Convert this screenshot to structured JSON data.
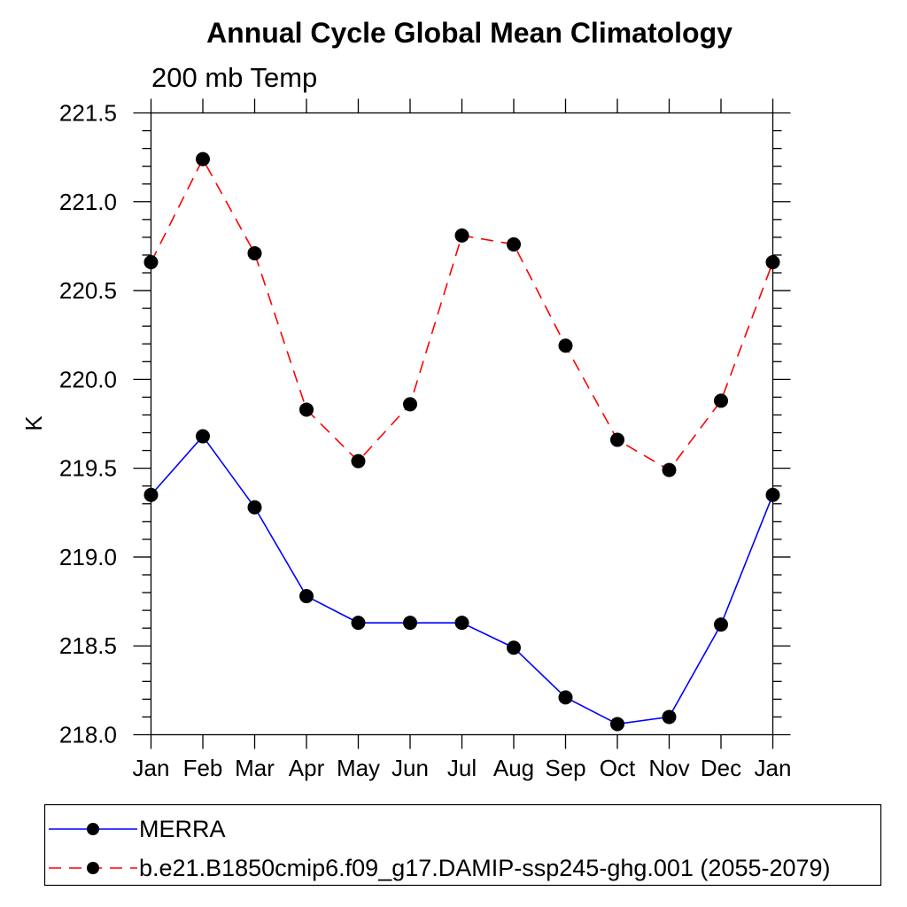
{
  "page": {
    "background": "#ffffff"
  },
  "chart_data": {
    "type": "line",
    "title": "Annual Cycle Global Mean Climatology",
    "subtitle": "200 mb Temp",
    "xlabel": "",
    "ylabel": "K",
    "categories": [
      "Jan",
      "Feb",
      "Mar",
      "Apr",
      "May",
      "Jun",
      "Jul",
      "Aug",
      "Sep",
      "Oct",
      "Nov",
      "Dec",
      "Jan"
    ],
    "ylim": [
      218.0,
      221.5
    ],
    "ytick_major_interval": 0.5,
    "ytick_minor_interval": 0.1,
    "ytick_major_labels": [
      "218.0",
      "218.5",
      "219.0",
      "219.5",
      "220.0",
      "220.5",
      "221.0",
      "221.5"
    ],
    "grid": false,
    "axis_color": "#000000",
    "marker": "filled-circle",
    "marker_color": "#000000",
    "legend_position": "bottom-left-boxed",
    "series": [
      {
        "name": "MERRA",
        "color": "#0000ff",
        "line_style": "solid",
        "values": [
          219.35,
          219.68,
          219.28,
          218.78,
          218.63,
          218.63,
          218.63,
          218.49,
          218.21,
          218.06,
          218.1,
          218.62,
          219.35
        ]
      },
      {
        "name": "b.e21.B1850cmip6.f09_g17.DAMIP-ssp245-ghg.001 (2055-2079)",
        "color": "#ff0000",
        "line_style": "dashed",
        "values": [
          220.66,
          221.24,
          220.71,
          219.83,
          219.54,
          219.86,
          220.81,
          220.76,
          220.19,
          219.66,
          219.49,
          219.88,
          220.66
        ]
      }
    ]
  }
}
